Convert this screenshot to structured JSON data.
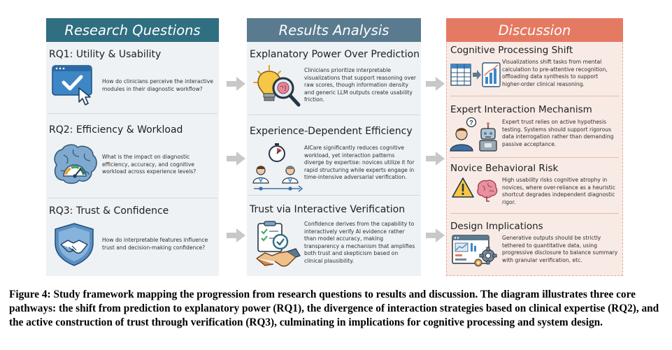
{
  "columns": {
    "research": {
      "header": "Research Questions",
      "items": [
        {
          "title": "RQ1: Utility & Usability",
          "text": "How do clinicians perceive the interactive modules in their diagnostic workflow?",
          "icon": "checkbox-cursor-icon"
        },
        {
          "title": "RQ2: Efficiency & Workload",
          "text": "What is the impact on diagnostic efficiency, accuracy, and cognitive workload across experience levels?",
          "icon": "brain-gauge-icon"
        },
        {
          "title": "RQ3: Trust & Confidence",
          "text": "How do interpretable features influence trust and decision-making confidence?",
          "icon": "shield-handshake-icon"
        }
      ]
    },
    "results": {
      "header": "Results Analysis",
      "items": [
        {
          "title": "Explanatory Power Over Prediction",
          "text": "Clinicians prioritize interpretable visualizations that support reasoning over raw scores, though information density and generic LLM outputs create usability friction.",
          "icon": "lightbulb-magnifier-icon"
        },
        {
          "title": "Experience-Dependent Efficiency",
          "text": "AICare significantly reduces cognitive workload, yet interaction patterns diverge by expertise: novices utilize it for rapid structuring while experts engage in time-intensive adversarial verification.",
          "icon": "doctors-stopwatch-icon"
        },
        {
          "title": "Trust via Interactive Verification",
          "text": "Confidence derives from the capability to interactively verify AI evidence rather than model accuracy, making transparency a mechanism that amplifies both trust and skepticism based on clinical plausibility.",
          "icon": "checklist-handshake-icon"
        }
      ]
    },
    "discussion": {
      "header": "Discussion",
      "items": [
        {
          "title": "Cognitive Processing Shift",
          "text": "Visualizations shift tasks from mental calculation to pre-attentive recognition, offloading data synthesis to support higher-order clinical reasoning.",
          "icon": "table-to-chart-icon"
        },
        {
          "title": "Expert Interaction Mechanism",
          "text": "Expert trust relies on active hypothesis testing. Systems should support rigorous data interrogation rather than demanding passive acceptance.",
          "icon": "person-robot-icon"
        },
        {
          "title": "Novice Behavioral Risk",
          "text": "High usability risks cognitive atrophy in novices, where over-reliance as a heuristic shortcut degrades independent diagnostic rigor.",
          "icon": "warning-brain-icon"
        },
        {
          "title": "Design Implications",
          "text": "Generative outputs should be strictly tethered to quantitative data, using progressive disclosure to balance summary with granular verification, etc.",
          "icon": "dashboard-gears-icon"
        }
      ]
    }
  },
  "caption": "Figure 4: Study framework mapping the progression from research questions to results and discussion. The diagram illustrates three core pathways: the shift from prediction to explanatory power (RQ1), the divergence of interaction strategies based on clinical expertise (RQ2), and the active construction of trust through verification (RQ3), culminating in implications for cognitive processing and system design.",
  "colors": {
    "research_header": "#2f6f81",
    "results_header": "#5a7b8f",
    "discussion_header": "#e57a62",
    "discussion_border": "#e7a995",
    "panel_bg": "#eef2f5",
    "discussion_bg": "#f8ebe6",
    "arrow": "#c8c8c8"
  }
}
